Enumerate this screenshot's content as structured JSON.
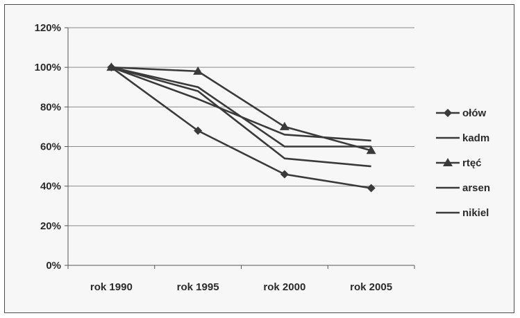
{
  "chart_data": {
    "type": "line",
    "title": "",
    "xlabel": "",
    "ylabel": "",
    "categories": [
      "rok 1990",
      "rok 1995",
      "rok 2000",
      "rok 2005"
    ],
    "ylim": [
      0,
      120
    ],
    "yticks": [
      0,
      20,
      40,
      60,
      80,
      100,
      120
    ],
    "ytick_labels": [
      "0%",
      "20%",
      "40%",
      "60%",
      "80%",
      "100%",
      "120%"
    ],
    "grid": true,
    "legend_position": "right",
    "series": [
      {
        "name": "ołów",
        "values": [
          100,
          68,
          46,
          39
        ],
        "marker": "diamond"
      },
      {
        "name": "kadm",
        "values": [
          100,
          88,
          54,
          50
        ],
        "marker": "none"
      },
      {
        "name": "rtęć",
        "values": [
          100,
          98,
          70,
          58
        ],
        "marker": "triangle"
      },
      {
        "name": "arsen",
        "values": [
          100,
          90,
          60,
          60
        ],
        "marker": "none"
      },
      {
        "name": "nikiel",
        "values": [
          100,
          84,
          66,
          63
        ],
        "marker": "none"
      }
    ],
    "line_color": "#3a3a3a"
  }
}
